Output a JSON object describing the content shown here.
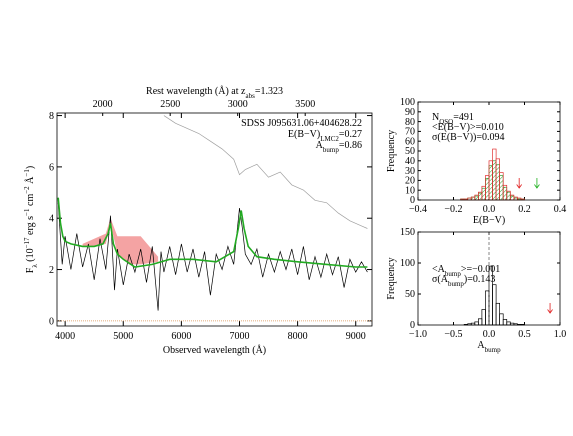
{
  "chart_data": [
    {
      "type": "line",
      "annotations": [
        [
          {
            "text": "SDSS J095631.06+404628.22"
          }
        ],
        [
          {
            "text": "E(B−V)"
          },
          {
            "text": "LMC2",
            "shift": "sub"
          },
          {
            "text": "=0.27"
          }
        ],
        [
          {
            "text": "A"
          },
          {
            "text": "bump",
            "shift": "sub"
          },
          {
            "text": "=0.86"
          }
        ]
      ],
      "xlabel": [
        {
          "text": "Observed wavelength (Å)"
        }
      ],
      "x2label": [
        {
          "text": "Rest wavelength (Å) at z"
        },
        {
          "text": "abs",
          "shift": "sub"
        },
        {
          "text": "=1.323"
        }
      ],
      "ylabel": [
        {
          "text": "F"
        },
        {
          "text": "λ",
          "shift": "sub"
        },
        {
          "text": " (10"
        },
        {
          "text": "−17",
          "shift": "super"
        },
        {
          "text": " erg s"
        },
        {
          "text": "−1",
          "shift": "super"
        },
        {
          "text": " cm"
        },
        {
          "text": "−2",
          "shift": "super"
        },
        {
          "text": " Å"
        },
        {
          "text": "−1",
          "shift": "super"
        },
        {
          "text": ")"
        }
      ],
      "xlim": [
        3860,
        9280
      ],
      "xticks": [
        4000,
        5000,
        6000,
        7000,
        8000,
        9000
      ],
      "x2lim": [
        1661.6,
        3994.8
      ],
      "x2ticks": [
        2000,
        2500,
        3000,
        3500
      ],
      "ylim": [
        -0.2,
        8.1
      ],
      "yticks": [
        0,
        2,
        4,
        6,
        8
      ],
      "band": {
        "color": "#f4a3a3",
        "x": [
          4300,
          4500,
          4700,
          4780,
          4900,
          5100,
          5300,
          5600
        ],
        "upper": [
          3.0,
          3.2,
          3.4,
          4.0,
          3.3,
          3.3,
          3.3,
          2.5
        ],
        "lower": [
          2.9,
          2.9,
          3.0,
          3.8,
          2.6,
          2.2,
          2.2,
          2.3
        ]
      },
      "hline": {
        "y": 0,
        "color": "#d89050"
      },
      "series": [
        {
          "color": "#a0a0a0",
          "x": [
            5700,
            5900,
            6100,
            6300,
            6500,
            6700,
            6900,
            7000,
            7100,
            7300,
            7500,
            7700,
            7900,
            8100,
            8300,
            8500,
            8700,
            8900,
            9100,
            9200
          ],
          "values": [
            8.0,
            7.7,
            7.5,
            7.3,
            7.0,
            6.7,
            6.3,
            5.7,
            5.9,
            6.1,
            5.6,
            5.8,
            5.3,
            5.1,
            4.7,
            4.6,
            4.2,
            3.9,
            3.7,
            3.6
          ]
        },
        {
          "color": "#000000",
          "x": [
            3880,
            3950,
            4000,
            4100,
            4200,
            4300,
            4400,
            4500,
            4600,
            4700,
            4780,
            4850,
            4900,
            5000,
            5100,
            5200,
            5300,
            5400,
            5500,
            5600,
            5650,
            5700,
            5800,
            5900,
            6000,
            6100,
            6200,
            6300,
            6400,
            6500,
            6600,
            6700,
            6800,
            6900,
            7000,
            7050,
            7100,
            7200,
            7300,
            7400,
            7500,
            7600,
            7700,
            7800,
            7900,
            8000,
            8100,
            8200,
            8300,
            8400,
            8500,
            8600,
            8700,
            8800,
            8900,
            9000,
            9100,
            9200
          ],
          "values": [
            4.6,
            2.2,
            3.3,
            2.0,
            3.4,
            2.1,
            3.0,
            1.6,
            3.2,
            2.0,
            4.1,
            1.2,
            2.8,
            1.4,
            2.6,
            1.9,
            2.8,
            1.5,
            2.9,
            0.4,
            2.7,
            1.9,
            2.9,
            1.8,
            3.0,
            1.9,
            2.8,
            1.7,
            2.7,
            1.0,
            2.6,
            2.0,
            2.9,
            2.2,
            4.4,
            3.6,
            2.6,
            2.2,
            2.8,
            1.7,
            2.6,
            1.9,
            2.7,
            2.0,
            2.8,
            1.8,
            2.9,
            1.6,
            2.5,
            1.7,
            2.6,
            1.8,
            2.5,
            1.3,
            2.4,
            1.9,
            2.3,
            1.9
          ]
        },
        {
          "color": "#22aa22",
          "x": [
            3880,
            3920,
            3960,
            4000,
            4100,
            4300,
            4500,
            4650,
            4740,
            4780,
            4830,
            4900,
            5000,
            5200,
            5500,
            5800,
            6200,
            6600,
            6900,
            6980,
            7030,
            7080,
            7150,
            7300,
            7600,
            8000,
            8500,
            9000,
            9200
          ],
          "values": [
            4.8,
            3.8,
            3.3,
            3.1,
            3.0,
            2.9,
            2.9,
            3.0,
            3.4,
            3.8,
            3.0,
            2.6,
            2.4,
            2.1,
            2.2,
            2.4,
            2.4,
            2.3,
            2.7,
            3.6,
            4.3,
            3.6,
            2.9,
            2.5,
            2.4,
            2.3,
            2.2,
            2.1,
            2.1
          ]
        }
      ]
    },
    {
      "type": "histogram",
      "annotations": [
        [
          {
            "text": "N"
          },
          {
            "text": "QSO",
            "shift": "sub"
          },
          {
            "text": "=491"
          }
        ],
        [
          {
            "text": "<E(B−V)>=0.010"
          }
        ],
        [
          {
            "text": "σ(E(B−V))=0.094"
          }
        ]
      ],
      "xlabel": [
        {
          "text": "E(B−V)"
        }
      ],
      "ylabel": [
        {
          "text": "Frequency"
        }
      ],
      "xlim": [
        -0.4,
        0.4
      ],
      "xticks": [
        {
          "value": -0.4,
          "label": "−0.4"
        },
        {
          "value": -0.2,
          "label": "−0.2"
        },
        {
          "value": 0,
          "label": "0.0"
        },
        0.2,
        0.4
      ],
      "ylim": [
        0,
        100
      ],
      "yticks": [
        0,
        10,
        20,
        30,
        40,
        50,
        60,
        70,
        80,
        90,
        100
      ],
      "bins": [
        -0.16,
        -0.14,
        -0.12,
        -0.1,
        -0.08,
        -0.06,
        -0.04,
        -0.02,
        0,
        0.02,
        0.04,
        0.06,
        0.08,
        0.1,
        0.12,
        0.14,
        0.16,
        0.18,
        0.2
      ],
      "series": [
        {
          "color": "#e03030",
          "style": "outline",
          "values": [
            1,
            1,
            2,
            3,
            5,
            8,
            14,
            25,
            40,
            52,
            42,
            28,
            15,
            9,
            5,
            3,
            2,
            1
          ]
        },
        {
          "color": "#30a030",
          "style": "hatched",
          "values": [
            1,
            1,
            2,
            3,
            4,
            7,
            12,
            22,
            35,
            40,
            36,
            25,
            13,
            8,
            4,
            2,
            1,
            1
          ]
        }
      ],
      "arrows": [
        {
          "x": 0.17,
          "color": "#e02020"
        },
        {
          "x": 0.27,
          "color": "#20b020"
        }
      ]
    },
    {
      "type": "histogram",
      "annotations": [
        [
          {
            "text": "<A"
          },
          {
            "text": "bump",
            "shift": "sub"
          },
          {
            "text": ">=−0.001"
          }
        ],
        [
          {
            "text": "σ(A"
          },
          {
            "text": "bump",
            "shift": "sub"
          },
          {
            "text": ")=0.143"
          }
        ]
      ],
      "xlabel": [
        {
          "text": "A"
        },
        {
          "text": "bump",
          "shift": "sub"
        }
      ],
      "ylabel": [
        {
          "text": "Frequency"
        }
      ],
      "xlim": [
        -1,
        1
      ],
      "xticks": [
        {
          "value": -1,
          "label": "−1.0"
        },
        {
          "value": -0.5,
          "label": "−0.5"
        },
        {
          "value": 0,
          "label": "0.0"
        },
        0.5,
        {
          "value": 1,
          "label": "1.0"
        }
      ],
      "ylim": [
        0,
        150
      ],
      "yticks": [
        0,
        50,
        100,
        150
      ],
      "bins": [
        -0.35,
        -0.3,
        -0.25,
        -0.2,
        -0.15,
        -0.1,
        -0.05,
        0,
        0.05,
        0.1,
        0.15,
        0.2,
        0.25,
        0.3,
        0.35,
        0.4,
        0.45,
        0.5
      ],
      "series": [
        {
          "color": "#000000",
          "style": "outline",
          "values": [
            1,
            2,
            3,
            5,
            10,
            25,
            55,
            95,
            65,
            35,
            18,
            9,
            5,
            3,
            2,
            1,
            1
          ]
        }
      ],
      "mean_line": 0,
      "arrows": [
        {
          "x": 0.86,
          "color": "#e02020"
        }
      ]
    }
  ]
}
